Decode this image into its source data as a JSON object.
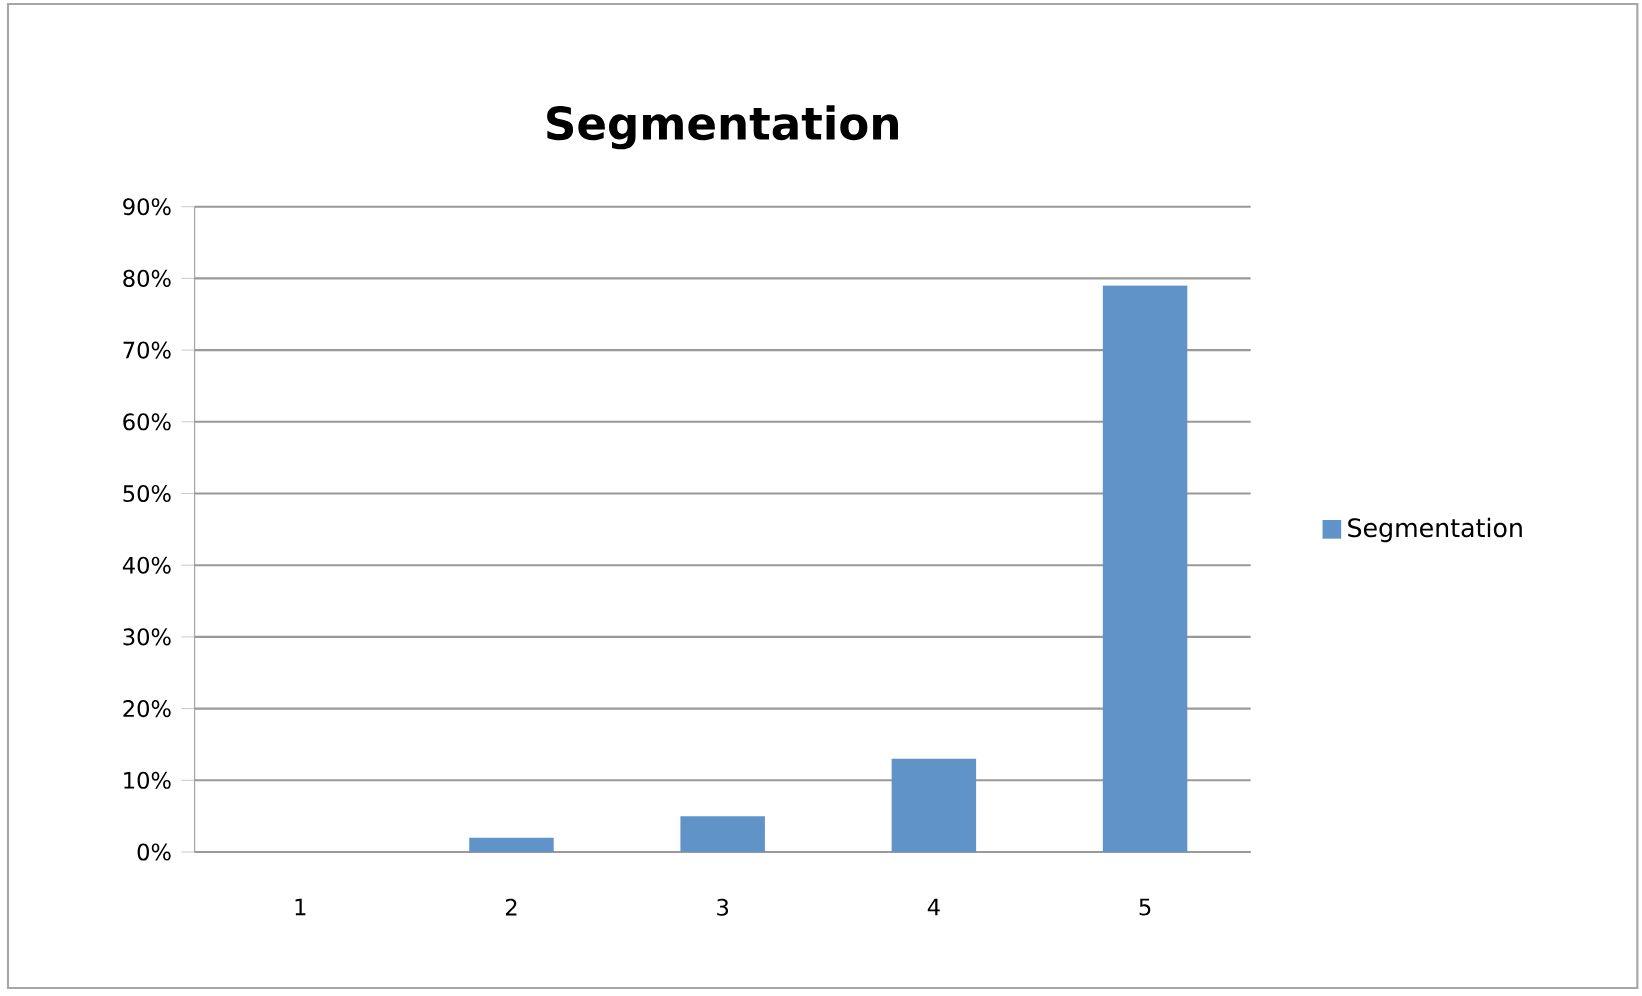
{
  "chart_data": {
    "type": "bar",
    "title": "Segmentation",
    "categories": [
      "1",
      "2",
      "3",
      "4",
      "5"
    ],
    "series": [
      {
        "name": "Segmentation",
        "color": "#6094c8",
        "values": [
          0,
          2,
          5,
          13,
          79
        ]
      }
    ],
    "ylim": [
      0,
      90
    ],
    "yticks": [
      {
        "value": 0,
        "label": "0%"
      },
      {
        "value": 10,
        "label": "10%"
      },
      {
        "value": 20,
        "label": "20%"
      },
      {
        "value": 30,
        "label": "30%"
      },
      {
        "value": 40,
        "label": "40%"
      },
      {
        "value": 50,
        "label": "50%"
      },
      {
        "value": 60,
        "label": "60%"
      },
      {
        "value": 70,
        "label": "70%"
      },
      {
        "value": 80,
        "label": "80%"
      },
      {
        "value": 90,
        "label": "90%"
      }
    ],
    "grid": "y",
    "legend": "right"
  }
}
